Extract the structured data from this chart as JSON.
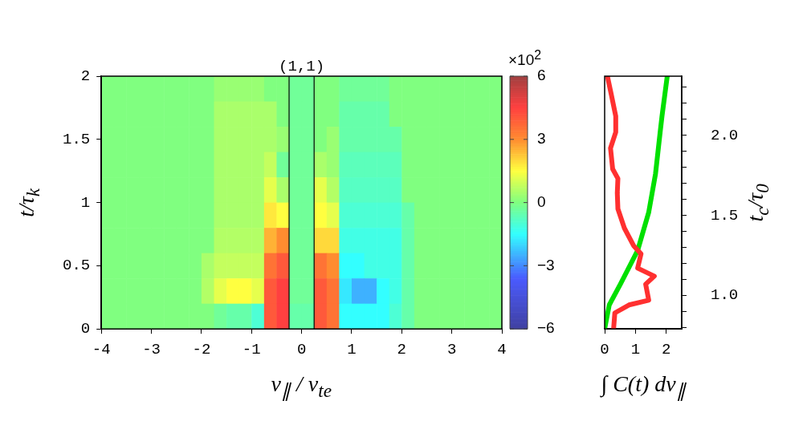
{
  "chart_data": [
    {
      "type": "heatmap",
      "xlabel": "v$_{∥}$ / v$_{te}$",
      "ylabel": "t/τ$_{k}$",
      "clabel": "×10$^{2}$",
      "xlim": [
        -4,
        4
      ],
      "xticks": [
        -4,
        -3,
        -2,
        -1,
        0,
        1,
        2,
        3,
        4
      ],
      "ylim": [
        0,
        2
      ],
      "yticks": [
        0,
        0.5,
        1,
        1.5,
        2
      ],
      "clim": [
        -6,
        6
      ],
      "cticks": [
        -6,
        -3,
        0,
        3,
        6
      ],
      "grid": false,
      "ref_lines": [
        {
          "axis": "x",
          "value": -0.25,
          "color": "#000000"
        },
        {
          "axis": "x",
          "value": 0.25,
          "color": "#000000"
        }
      ],
      "annotations": [
        "(1,1)"
      ],
      "cells": [
        [
          0,
          0,
          0,
          0,
          0,
          0,
          0,
          0,
          0,
          0.3,
          0.3,
          0.3,
          0.3,
          0,
          0,
          -0.3,
          -0.3,
          0,
          0,
          -0.3,
          -0.3,
          -0.3,
          -0.3,
          0,
          0,
          0,
          0,
          0,
          0,
          0,
          0,
          0
        ],
        [
          0,
          0,
          0,
          0,
          0,
          0,
          0,
          0,
          0,
          0.5,
          0.5,
          0.5,
          0.5,
          0.5,
          0,
          -0.3,
          -0.3,
          0,
          0,
          -0.5,
          -0.5,
          -0.5,
          -0.5,
          0,
          0,
          0,
          0,
          0,
          0,
          0,
          0,
          0
        ],
        [
          0,
          0,
          0,
          0,
          0,
          0,
          0,
          0,
          0,
          0.5,
          0.5,
          0.5,
          0.5,
          0.5,
          0.3,
          -0.3,
          -0.3,
          0,
          0.3,
          -0.5,
          -0.5,
          -0.5,
          -0.5,
          -0.5,
          0,
          0,
          0,
          0,
          0,
          0,
          0,
          0
        ],
        [
          0,
          0,
          0,
          0,
          0,
          0,
          0,
          0,
          0,
          0.5,
          0.5,
          0.5,
          0.5,
          0.8,
          -0.3,
          -0.3,
          -0.3,
          0.5,
          0.3,
          -0.7,
          -0.7,
          -0.7,
          -0.7,
          -0.7,
          0,
          0,
          0,
          0,
          0,
          0,
          0,
          0
        ],
        [
          0,
          0,
          0,
          0,
          0,
          0,
          0,
          0,
          0,
          0.5,
          0.5,
          0.5,
          0.5,
          1.2,
          0.5,
          -0.3,
          -0.3,
          1.2,
          0.6,
          -0.8,
          -0.8,
          -0.8,
          -0.8,
          -0.8,
          0,
          0,
          0,
          0,
          0,
          0,
          0,
          0
        ],
        [
          0,
          0,
          0,
          0,
          0,
          0,
          0,
          0,
          0,
          0.5,
          0.5,
          0.5,
          0.5,
          1.8,
          1.5,
          -0.3,
          -0.3,
          1.5,
          1.2,
          -1,
          -1,
          -1,
          -1,
          -1,
          -0.5,
          0,
          0,
          0,
          0,
          0,
          0,
          0
        ],
        [
          0,
          0,
          0,
          0,
          0,
          0,
          0,
          0,
          0,
          0.6,
          0.6,
          0.6,
          0.6,
          2.5,
          3,
          -0.3,
          -0.3,
          2,
          2,
          -1.2,
          -1.2,
          -1.2,
          -1.2,
          -1.2,
          -0.5,
          0,
          0,
          0,
          0,
          0,
          0,
          0
        ],
        [
          0,
          0,
          0,
          0,
          0,
          0,
          0,
          0,
          0.5,
          0.8,
          0.8,
          0.8,
          0.8,
          3.5,
          4,
          -0.3,
          -0.3,
          3.5,
          3,
          -1.5,
          -1.5,
          -1.2,
          -1.2,
          -1.2,
          -0.5,
          0,
          0,
          0,
          0,
          0,
          0,
          0
        ],
        [
          0,
          0,
          0,
          0,
          0,
          0,
          0,
          0,
          0.6,
          1.2,
          1.5,
          1.5,
          1.2,
          4,
          4.5,
          -0.3,
          -0.3,
          4,
          3.5,
          -1.8,
          -2.5,
          -2.5,
          -1.5,
          -1.2,
          -0.5,
          0,
          0,
          0,
          0,
          0,
          0,
          0
        ],
        [
          0,
          0,
          0,
          0,
          0,
          0,
          0,
          0,
          0,
          -0.3,
          -0.5,
          -0.5,
          -1,
          4,
          4.5,
          -0.5,
          -0.5,
          4,
          3.5,
          -1.5,
          -1.5,
          -1.5,
          -1.5,
          -1,
          -0.5,
          0,
          0,
          0,
          0,
          0,
          0,
          0
        ]
      ]
    },
    {
      "type": "line",
      "xlabel": "∫ C(t) dv$_{∥}$",
      "y2label": "t$_{c}$/τ$_{0}$",
      "xlim": [
        0,
        2.5
      ],
      "xticks": [
        0,
        1,
        2
      ],
      "y2lim": [
        0.79,
        2.37
      ],
      "y2ticks": [
        {
          "value": 0.8,
          "label": null
        },
        {
          "value": 0.9,
          "label": null
        },
        {
          "value": 1,
          "label": "1.0"
        },
        {
          "value": 1.1,
          "label": null
        },
        {
          "value": 1.2,
          "label": null
        },
        {
          "value": 1.3,
          "label": null
        },
        {
          "value": 1.4,
          "label": null
        },
        {
          "value": 1.5,
          "label": "1.5"
        },
        {
          "value": 1.6,
          "label": null
        },
        {
          "value": 1.7,
          "label": null
        },
        {
          "value": 1.8,
          "label": null
        },
        {
          "value": 1.9,
          "label": null
        },
        {
          "value": 2,
          "label": "2.0"
        },
        {
          "value": 2.1,
          "label": null
        },
        {
          "value": 2.2,
          "label": null
        },
        {
          "value": 2.3,
          "label": null
        }
      ],
      "grid": false,
      "legend": false,
      "marker": "none",
      "line_style": "solid",
      "series": [
        {
          "color": "#ff3030",
          "axis": "y2",
          "x": [
            0.29,
            0.33,
            0.79,
            1.43,
            1.33,
            1.61,
            1.07,
            1.18,
            0.94,
            0.64,
            0.43,
            0.41,
            0.43,
            0.26,
            0.19,
            0.36,
            0.36,
            0.21,
            0.09
          ],
          "values": [
            0.79,
            0.89,
            0.94,
            0.97,
            1.07,
            1.12,
            1.17,
            1.26,
            1.31,
            1.42,
            1.54,
            1.64,
            1.73,
            1.79,
            1.92,
            2.02,
            2.12,
            2.26,
            2.37
          ]
        },
        {
          "color": "#00e000",
          "axis": "y2",
          "x": [
            0,
            0.15,
            0.51,
            1.07,
            1.43,
            1.65,
            1.8,
            1.86,
            2.03
          ],
          "values": [
            0.79,
            0.94,
            1.07,
            1.28,
            1.52,
            1.76,
            2.02,
            2.12,
            2.37
          ]
        }
      ]
    }
  ]
}
